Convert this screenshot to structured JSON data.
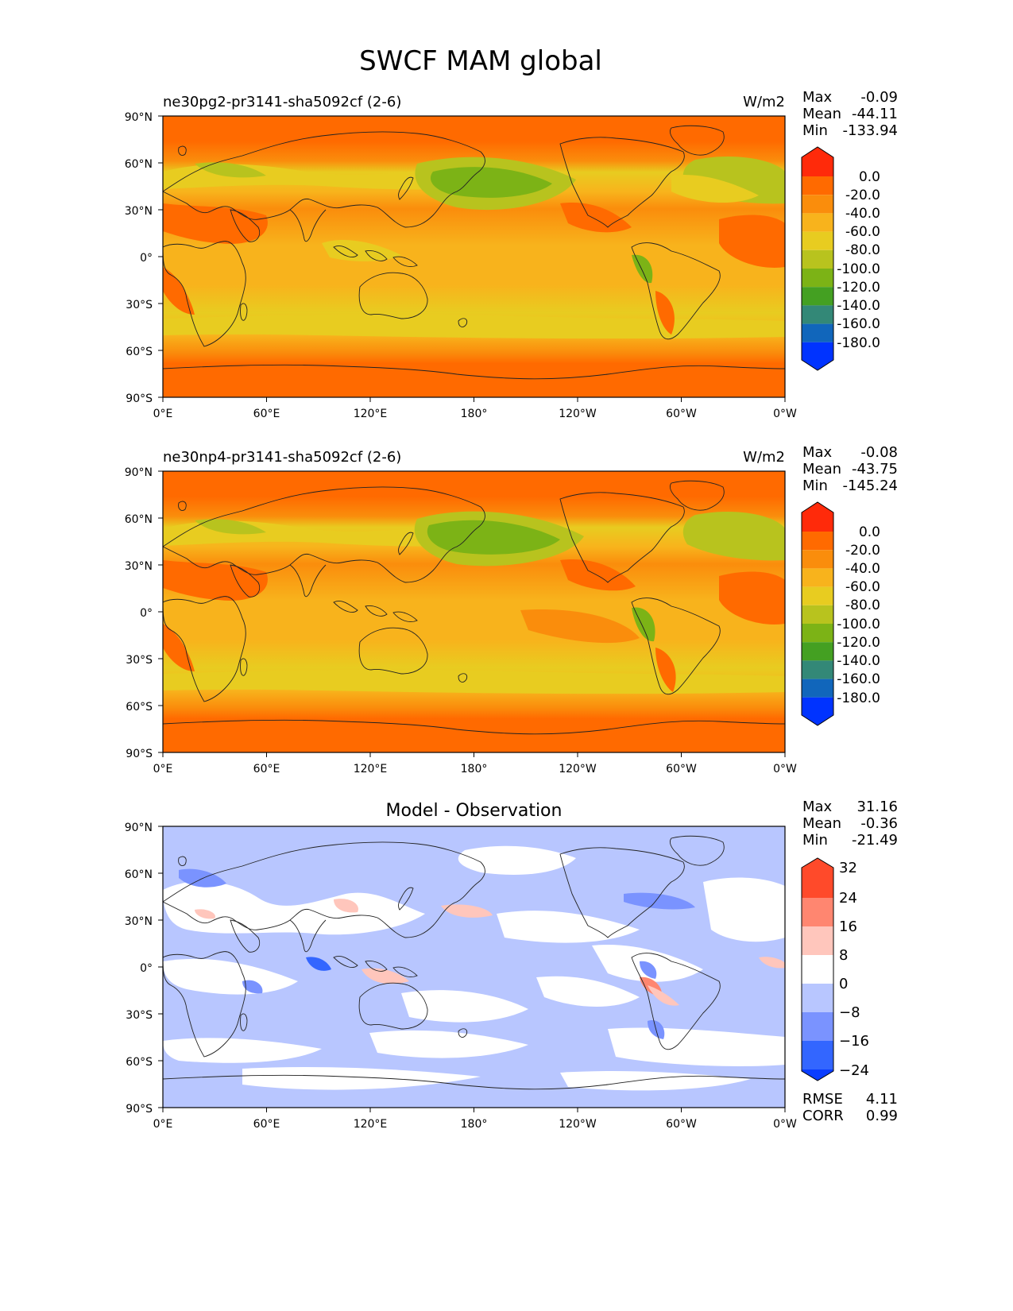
{
  "figure": {
    "title": "SWCF MAM global"
  },
  "axes": {
    "lat_labels": [
      "90°N",
      "60°N",
      "30°N",
      "0°",
      "30°S",
      "60°S",
      "90°S"
    ],
    "lon_labels": [
      "0°E",
      "60°E",
      "120°E",
      "180°",
      "120°W",
      "60°W",
      "0°W"
    ]
  },
  "colors": {
    "model_levels": [
      "#0033ff",
      "#1166bb",
      "#338877",
      "#44a022",
      "#7cb316",
      "#b8c31e",
      "#e8cc20",
      "#f8b31c",
      "#fa8d0c",
      "#ff6a00",
      "#ff2a0a"
    ],
    "diff_levels": [
      "#0a3dff",
      "#3366ff",
      "#7a93ff",
      "#b8c6ff",
      "#ffffff",
      "#ffc6bc",
      "#ff8670",
      "#ff4a2a"
    ],
    "land_outline": "#222222"
  },
  "panels": [
    {
      "id": "test",
      "title": "ne30pg2-pr3141-sha5092cf (2-6)",
      "units": "W/m2",
      "stats": {
        "max_label": "Max",
        "max": "-0.09",
        "mean_label": "Mean",
        "mean": "-44.11",
        "min_label": "Min",
        "min": "-133.94"
      },
      "colorbar_labels": [
        "0.0",
        "-20.0",
        "-40.0",
        "-60.0",
        "-80.0",
        "-100.0",
        "-120.0",
        "-140.0",
        "-160.0",
        "-180.0"
      ]
    },
    {
      "id": "reference",
      "title": "ne30np4-pr3141-sha5092cf (2-6)",
      "units": "W/m2",
      "stats": {
        "max_label": "Max",
        "max": "-0.08",
        "mean_label": "Mean",
        "mean": "-43.75",
        "min_label": "Min",
        "min": "-145.24"
      },
      "colorbar_labels": [
        "0.0",
        "-20.0",
        "-40.0",
        "-60.0",
        "-80.0",
        "-100.0",
        "-120.0",
        "-140.0",
        "-160.0",
        "-180.0"
      ]
    },
    {
      "id": "difference",
      "title": "Model - Observation",
      "stats": {
        "max_label": "Max",
        "max": "31.16",
        "mean_label": "Mean",
        "mean": "-0.36",
        "min_label": "Min",
        "min": "-21.49"
      },
      "colorbar_labels": [
        "32",
        "24",
        "16",
        "8",
        "0",
        "−8",
        "−16",
        "−24"
      ],
      "rmse_label": "RMSE",
      "rmse": "4.11",
      "corr_label": "CORR",
      "corr": "0.99"
    }
  ],
  "chart_data": {
    "type": "heatmap",
    "title": "SWCF MAM global",
    "variable": "SWCF",
    "season": "MAM",
    "units": "W/m2",
    "xlim": [
      0,
      360
    ],
    "ylim": [
      -90,
      90
    ],
    "x_ticks": [
      0,
      60,
      120,
      180,
      240,
      300,
      360
    ],
    "y_ticks": [
      90,
      60,
      30,
      0,
      -30,
      -60,
      -90
    ],
    "model_contour_levels": [
      0,
      -20,
      -40,
      -60,
      -80,
      -100,
      -120,
      -140,
      -160,
      -180
    ],
    "diff_contour_levels": [
      32,
      24,
      16,
      8,
      0,
      -8,
      -16,
      -24
    ]
  }
}
